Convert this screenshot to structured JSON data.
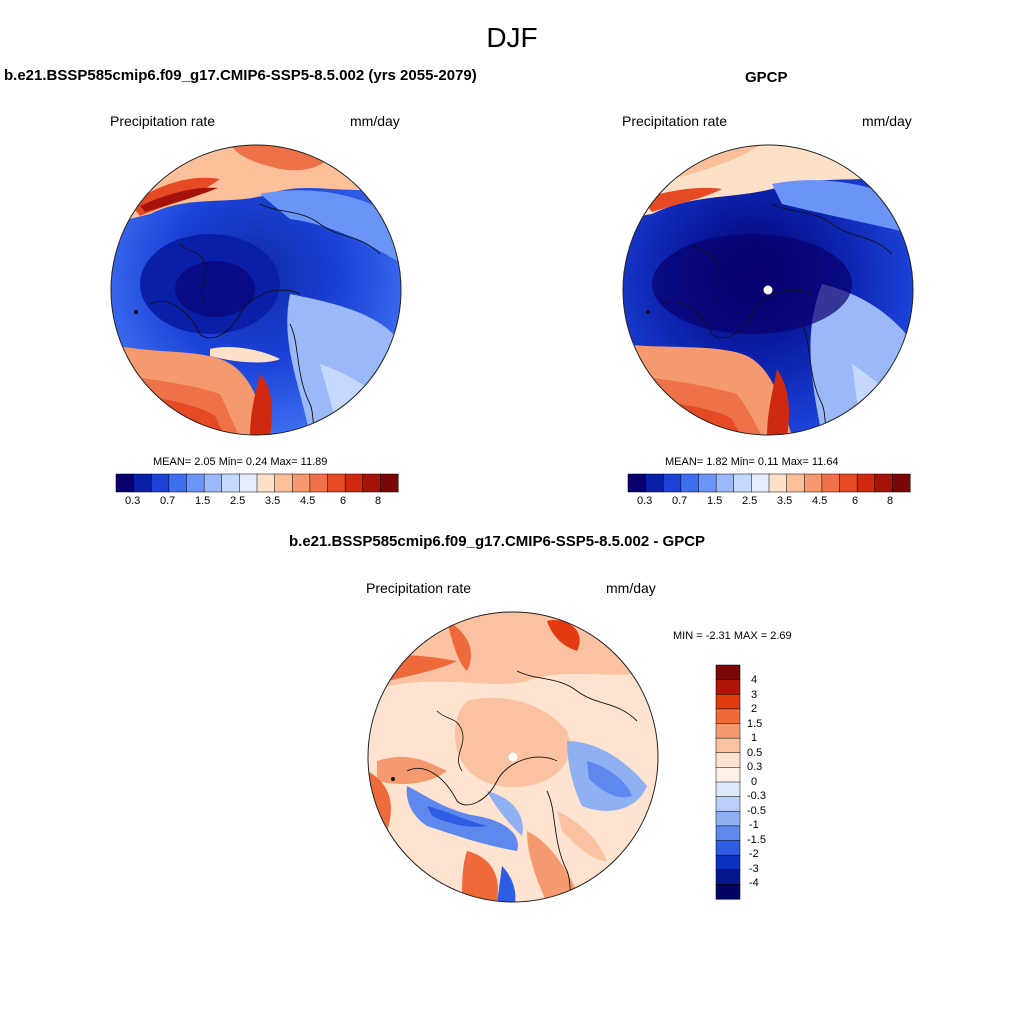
{
  "figure": {
    "title": "DJF"
  },
  "panels": [
    {
      "title": "b.e21.BSSP585cmip6.f09_g17.CMIP6-SSP5-8.5.002 (yrs 2055-2079)",
      "left_label": "Precipitation rate",
      "right_label": "mm/day",
      "stats": "MEAN=   2.05  Min=   0.24  Max=  11.89",
      "colorbar_ticks": [
        "0.3",
        "0.7",
        "1.5",
        "2.5",
        "3.5",
        "4.5",
        "6",
        "8"
      ]
    },
    {
      "title": "GPCP",
      "left_label": "Precipitation rate",
      "right_label": "mm/day",
      "stats": "MEAN=   1.82  Min=   0.11  Max=  11.64",
      "colorbar_ticks": [
        "0.3",
        "0.7",
        "1.5",
        "2.5",
        "3.5",
        "4.5",
        "6",
        "8"
      ]
    },
    {
      "title": "b.e21.BSSP585cmip6.f09_g17.CMIP6-SSP5-8.5.002 - GPCP",
      "left_label": "Precipitation rate",
      "right_label": "mm/day",
      "stats": "MIN =  -2.31 MAX =   2.69",
      "colorbar_ticks": [
        "4",
        "3",
        "2",
        "1.5",
        "1",
        "0.5",
        "0.3",
        "0",
        "-0.3",
        "-0.5",
        "-1",
        "-1.5",
        "-2",
        "-3",
        "-4"
      ]
    }
  ],
  "colors": {
    "abs_scale": [
      "#08006e",
      "#0a1fa8",
      "#1c42d8",
      "#3d6ef0",
      "#6a94f5",
      "#9bb9f8",
      "#c6d8fb",
      "#e6eefc",
      "#fde0c8",
      "#fbbf9a",
      "#f59a6f",
      "#ee7148",
      "#e64a24",
      "#cf2a10",
      "#a4120a",
      "#7a0705"
    ],
    "diff_scale": [
      "#7a0705",
      "#b3140a",
      "#e23b12",
      "#ef6a3a",
      "#f59a6f",
      "#fac2a0",
      "#fde3d0",
      "#fdf0e6",
      "#dde8fb",
      "#b9cff8",
      "#8fb0f3",
      "#5f88ee",
      "#2e5ce3",
      "#0c30c2",
      "#06188e",
      "#030660"
    ],
    "ocean_blue": "#1f4fd6",
    "deep_blue": "#0e2aa8",
    "land_red": "#e8552a"
  },
  "chart_data": [
    {
      "type": "heatmap",
      "projection": "north-polar-stereographic",
      "title": "b.e21.BSSP585cmip6.f09_g17.CMIP6-SSP5-8.5.002 (yrs 2055-2079)",
      "variable": "Precipitation rate",
      "units": "mm/day",
      "mean": 2.05,
      "min": 0.24,
      "max": 11.89,
      "levels": [
        0.3,
        0.5,
        0.7,
        1,
        1.5,
        2,
        2.5,
        3,
        3.5,
        4,
        4.5,
        5,
        6,
        7,
        8
      ]
    },
    {
      "type": "heatmap",
      "projection": "north-polar-stereographic",
      "title": "GPCP",
      "variable": "Precipitation rate",
      "units": "mm/day",
      "mean": 1.82,
      "min": 0.11,
      "max": 11.64,
      "levels": [
        0.3,
        0.5,
        0.7,
        1,
        1.5,
        2,
        2.5,
        3,
        3.5,
        4,
        4.5,
        5,
        6,
        7,
        8
      ]
    },
    {
      "type": "heatmap",
      "projection": "north-polar-stereographic",
      "title": "b.e21.BSSP585cmip6.f09_g17.CMIP6-SSP5-8.5.002 - GPCP",
      "variable": "Precipitation rate",
      "units": "mm/day",
      "min": -2.31,
      "max": 2.69,
      "levels": [
        -4,
        -3,
        -2,
        -1.5,
        -1,
        -0.5,
        -0.3,
        0,
        0.3,
        0.5,
        1,
        1.5,
        2,
        3,
        4
      ]
    }
  ]
}
